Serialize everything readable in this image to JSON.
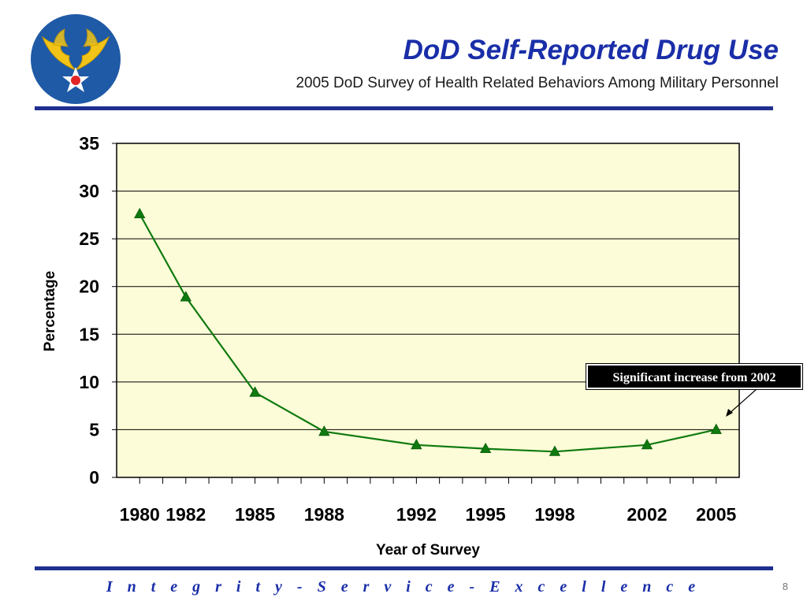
{
  "header": {
    "title": "DoD Self-Reported Drug Use",
    "subtitle": "2005 DoD Survey of Health Related Behaviors Among Military Personnel"
  },
  "logo": {
    "icon": "army-air-corps-wings-star-icon",
    "colors": {
      "disc": "#1f5aa6",
      "wings": "#f2c418",
      "star": "#ffffff",
      "center": "#e32424"
    }
  },
  "chart_data": {
    "type": "line",
    "title": "",
    "xlabel": "Year of Survey",
    "ylabel": "Percentage",
    "x_tick_labels": [
      "1980",
      "1982",
      "1985",
      "1988",
      "1992",
      "1995",
      "1998",
      "2002",
      "2005"
    ],
    "y_tick_labels": [
      "0",
      "5",
      "10",
      "15",
      "20",
      "25",
      "30",
      "35"
    ],
    "ylim": [
      0,
      35
    ],
    "xlim": [
      1979,
      2006
    ],
    "grid": true,
    "legend": "none",
    "series": [
      {
        "color": "#0f7a0f",
        "marker": "triangle",
        "x": [
          1980,
          1982,
          1985,
          1988,
          1992,
          1995,
          1998,
          2002,
          2005
        ],
        "y": [
          27.6,
          18.9,
          8.9,
          4.8,
          3.4,
          3.0,
          2.7,
          3.4,
          5.0
        ]
      }
    ],
    "annotation": {
      "text": "Significant increase from 2002",
      "target_x": 2005,
      "target_y": 5.0
    },
    "plot_background": "#fdfcd8"
  },
  "footer": {
    "motto": "I n t e g r i t y  -  S e r v i c e  -  E x c e l l e n c e",
    "page_number": "8"
  }
}
